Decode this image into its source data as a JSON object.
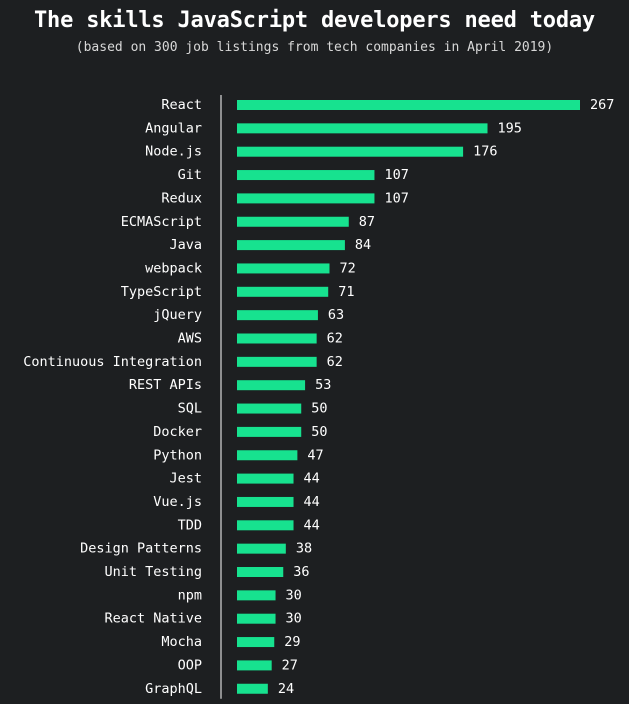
{
  "chart_data": {
    "type": "bar",
    "orientation": "horizontal",
    "title": "The skills JavaScript developers need today",
    "subtitle": "(based on 300 job listings from tech companies in April 2019)",
    "categories": [
      "React",
      "Angular",
      "Node.js",
      "Git",
      "Redux",
      "ECMAScript",
      "Java",
      "webpack",
      "TypeScript",
      "jQuery",
      "AWS",
      "Continuous Integration",
      "REST APIs",
      "SQL",
      "Docker",
      "Python",
      "Jest",
      "Vue.js",
      "TDD",
      "Design Patterns",
      "Unit Testing",
      "npm",
      "React Native",
      "Mocha",
      "OOP",
      "GraphQL"
    ],
    "values": [
      267,
      195,
      176,
      107,
      107,
      87,
      84,
      72,
      71,
      63,
      62,
      62,
      53,
      50,
      50,
      47,
      44,
      44,
      44,
      38,
      36,
      30,
      30,
      29,
      27,
      24
    ],
    "xlim": [
      0,
      267
    ],
    "grid": false,
    "colors": {
      "bar": "#17e28f",
      "background": "#1d1f21",
      "text": "#ffffff",
      "axis": "#ffffff"
    }
  }
}
